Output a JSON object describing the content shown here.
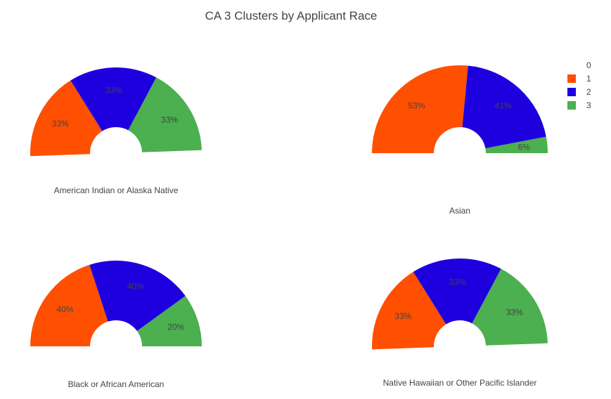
{
  "chart_data": {
    "type": "pie",
    "title": "CA 3 Clusters by Applicant Race",
    "legend": {
      "placement": "top-right",
      "items": [
        {
          "label": "0",
          "color": ""
        },
        {
          "label": "1",
          "color": "#FF4F00"
        },
        {
          "label": "2",
          "color": "#1E00DE"
        },
        {
          "label": "3",
          "color": "#4CAF50"
        }
      ]
    },
    "panels": [
      {
        "name": "American Indian or Alaska Native",
        "slices": [
          {
            "cluster": "0",
            "value": 0,
            "label": "",
            "color": ""
          },
          {
            "cluster": "1",
            "value": 33,
            "label": "33%",
            "color": "#FF4F00"
          },
          {
            "cluster": "2",
            "value": 33,
            "label": "33%",
            "color": "#1E00DE"
          },
          {
            "cluster": "3",
            "value": 33,
            "label": "33%",
            "color": "#4CAF50"
          }
        ]
      },
      {
        "name": "Asian",
        "slices": [
          {
            "cluster": "0",
            "value": 0,
            "label": "",
            "color": ""
          },
          {
            "cluster": "1",
            "value": 53,
            "label": "53%",
            "color": "#FF4F00"
          },
          {
            "cluster": "2",
            "value": 41,
            "label": "41%",
            "color": "#1E00DE"
          },
          {
            "cluster": "3",
            "value": 6,
            "label": "6%",
            "color": "#4CAF50"
          }
        ]
      },
      {
        "name": "Black or African American",
        "slices": [
          {
            "cluster": "0",
            "value": 0,
            "label": "",
            "color": ""
          },
          {
            "cluster": "1",
            "value": 40,
            "label": "40%",
            "color": "#FF4F00"
          },
          {
            "cluster": "2",
            "value": 40,
            "label": "40%",
            "color": "#1E00DE"
          },
          {
            "cluster": "3",
            "value": 20,
            "label": "20%",
            "color": "#4CAF50"
          }
        ]
      },
      {
        "name": "Native Hawaiian or Other Pacific Islander",
        "slices": [
          {
            "cluster": "0",
            "value": 0,
            "label": "",
            "color": ""
          },
          {
            "cluster": "1",
            "value": 33,
            "label": "33%",
            "color": "#FF4F00"
          },
          {
            "cluster": "2",
            "value": 33,
            "label": "33%",
            "color": "#1E00DE"
          },
          {
            "cluster": "3",
            "value": 33,
            "label": "33%",
            "color": "#4CAF50"
          }
        ]
      }
    ]
  }
}
